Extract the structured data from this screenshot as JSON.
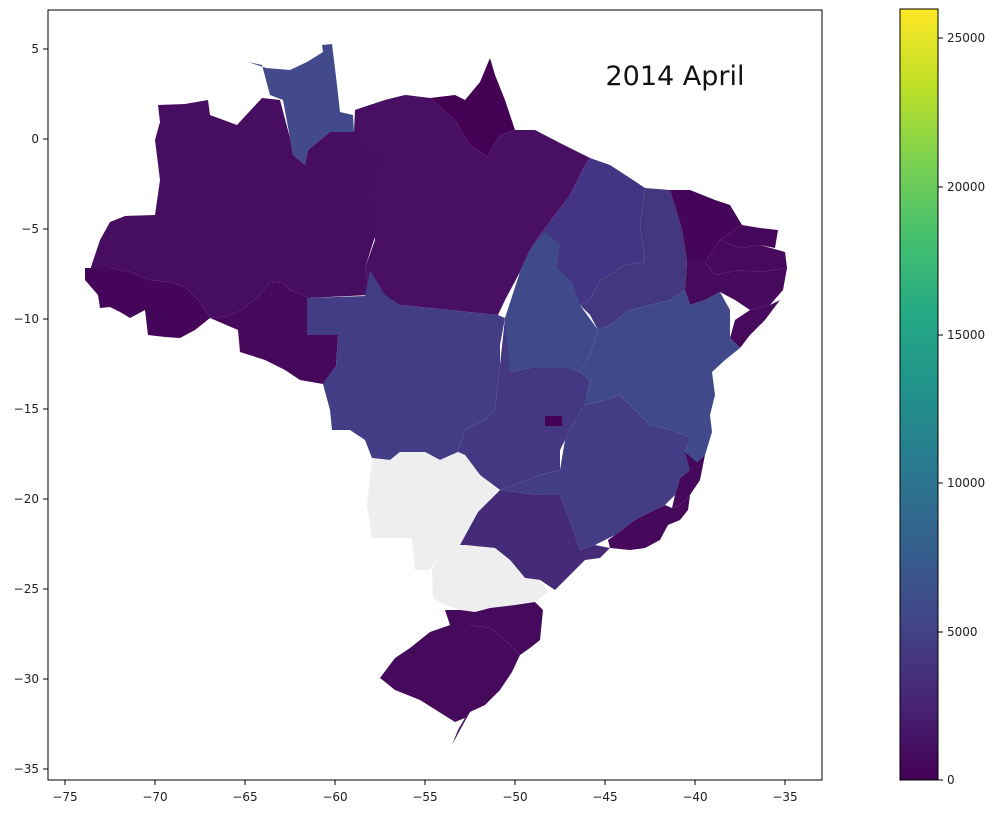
{
  "map": {
    "title": "2014 April",
    "x_ticks": [
      "−75",
      "−70",
      "−65",
      "−60",
      "−55",
      "−50",
      "−45",
      "−40",
      "−35"
    ],
    "y_ticks": [
      "5",
      "0",
      "−5",
      "−10",
      "−15",
      "−20",
      "−25",
      "−30",
      "−35"
    ],
    "x_range": [
      -76,
      -33
    ],
    "y_range": [
      -35.6,
      7.2
    ],
    "missing_color": "#eeeeee"
  },
  "colorbar": {
    "colormap": "viridis",
    "range": [
      0,
      26000
    ],
    "ticks": [
      "0",
      "5000",
      "10000",
      "15000",
      "20000",
      "25000"
    ]
  },
  "regions": [
    {
      "name": "Roraima",
      "color": "#424a8b"
    },
    {
      "name": "Amapá",
      "color": "#440154"
    },
    {
      "name": "Amazonas",
      "color": "#470d60"
    },
    {
      "name": "Pará",
      "color": "#480f62"
    },
    {
      "name": "Acre",
      "color": "#450558"
    },
    {
      "name": "Rondônia",
      "color": "#46085b"
    },
    {
      "name": "Mato Grosso",
      "color": "#433d86"
    },
    {
      "name": "Maranhão",
      "color": "#443584"
    },
    {
      "name": "Piauí",
      "color": "#433880"
    },
    {
      "name": "Ceará",
      "color": "#45065a"
    },
    {
      "name": "Rio Grande do Norte",
      "color": "#46085c"
    },
    {
      "name": "Paraíba",
      "color": "#46095c"
    },
    {
      "name": "Pernambuco",
      "color": "#460a5d"
    },
    {
      "name": "Alagoas",
      "color": "#46095c"
    },
    {
      "name": "Tocantins",
      "color": "#3f4a8a"
    },
    {
      "name": "Bahia",
      "color": "#404a8a"
    },
    {
      "name": "Goiás",
      "color": "#443882"
    },
    {
      "name": "Distrito Federal",
      "color": "#440154"
    },
    {
      "name": "Mato Grosso do Sul",
      "color": "#eeeeee"
    },
    {
      "name": "Minas Gerais",
      "color": "#433d86"
    },
    {
      "name": "Espírito Santo",
      "color": "#46085b"
    },
    {
      "name": "Rio de Janeiro",
      "color": "#46085b"
    },
    {
      "name": "São Paulo",
      "color": "#452a78"
    },
    {
      "name": "Paraná",
      "color": "#eeeeee"
    },
    {
      "name": "Santa Catarina",
      "color": "#460a5d"
    },
    {
      "name": "Rio Grande do Sul",
      "color": "#460a5d"
    }
  ]
}
